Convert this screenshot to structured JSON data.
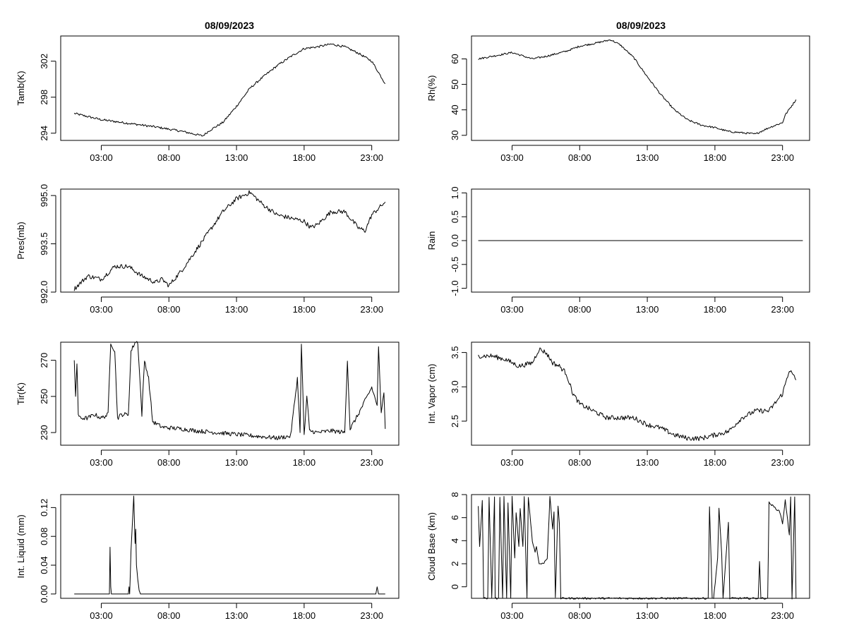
{
  "figure": {
    "left_title": "08/09/2023",
    "right_title": "08/09/2023",
    "line_color": "#000000",
    "background": "#ffffff"
  },
  "chart_data": [
    {
      "id": "tamb",
      "type": "line",
      "ylabel": "Tamb(K)",
      "xlim": [
        0,
        25
      ],
      "ylim": [
        293.2,
        304.8
      ],
      "yticks": [
        294,
        298,
        302
      ],
      "ytick_labels": [
        "294",
        "298",
        "302"
      ],
      "xticks": [
        3,
        8,
        13,
        18,
        23
      ],
      "xtick_labels": [
        "03:00",
        "08:00",
        "13:00",
        "18:00",
        "23:00"
      ],
      "series": [
        {
          "name": "Tamb",
          "x": [
            1,
            3,
            5,
            7,
            9,
            10.5,
            11,
            12,
            13,
            14,
            15,
            16,
            17,
            18,
            19,
            20,
            21,
            22,
            23,
            24
          ],
          "y": [
            296.2,
            295.5,
            295.1,
            294.7,
            294.2,
            293.7,
            294.3,
            295.2,
            297.0,
            299.0,
            300.3,
            301.5,
            302.5,
            303.4,
            303.6,
            303.9,
            303.6,
            302.9,
            302.0,
            299.5
          ],
          "noise": 0.12
        }
      ]
    },
    {
      "id": "rh",
      "type": "line",
      "ylabel": "Rh(%)",
      "xlim": [
        0,
        25
      ],
      "ylim": [
        28,
        69
      ],
      "yticks": [
        30,
        40,
        50,
        60
      ],
      "ytick_labels": [
        "30",
        "40",
        "50",
        "60"
      ],
      "xticks": [
        3,
        8,
        13,
        18,
        23
      ],
      "xtick_labels": [
        "03:00",
        "08:00",
        "13:00",
        "18:00",
        "23:00"
      ],
      "series": [
        {
          "name": "Rh",
          "x": [
            0.5,
            2,
            3,
            4.5,
            5.5,
            7,
            8,
            9,
            10.3,
            11,
            12,
            13,
            14,
            15,
            16,
            17,
            18,
            19,
            20,
            21,
            22,
            23,
            23.2,
            24
          ],
          "y": [
            60,
            61.5,
            62.5,
            60,
            61,
            63,
            65,
            66,
            67.5,
            65.5,
            60.5,
            53,
            46,
            40,
            36,
            34,
            33,
            31.5,
            31,
            30.5,
            33,
            35,
            38,
            44
          ],
          "noise": 0.35
        }
      ]
    },
    {
      "id": "pres",
      "type": "line",
      "ylabel": "Pres(mb)",
      "xlim": [
        0,
        25
      ],
      "ylim": [
        992.0,
        995.2
      ],
      "yticks": [
        992.0,
        993.5,
        995.0
      ],
      "ytick_labels": [
        "992.0",
        "993.5",
        "995.0"
      ],
      "xticks": [
        3,
        8,
        13,
        18,
        23
      ],
      "xtick_labels": [
        "03:00",
        "08:00",
        "13:00",
        "18:00",
        "23:00"
      ],
      "series": [
        {
          "name": "Pres",
          "x": [
            1,
            2,
            3,
            3.5,
            4,
            5,
            6,
            7,
            7.5,
            8,
            9,
            10,
            11,
            12,
            13,
            14,
            15,
            16,
            17,
            18,
            18.5,
            19,
            20,
            21,
            22,
            22.5,
            23,
            24
          ],
          "y": [
            992.1,
            992.5,
            992.4,
            992.6,
            992.8,
            992.8,
            992.5,
            992.3,
            992.4,
            992.2,
            992.7,
            993.3,
            993.9,
            994.5,
            994.9,
            995.1,
            994.7,
            994.4,
            994.3,
            994.2,
            994.0,
            994.1,
            994.5,
            994.5,
            994.0,
            993.9,
            994.4,
            994.8
          ],
          "noise": 0.07
        }
      ]
    },
    {
      "id": "rain",
      "type": "line",
      "ylabel": "Rain",
      "xlim": [
        0,
        25
      ],
      "ylim": [
        -1.08,
        1.08
      ],
      "yticks": [
        -1.0,
        -0.5,
        0.0,
        0.5,
        1.0
      ],
      "ytick_labels": [
        "-1.0",
        "-0.5",
        "0.0",
        "0.5",
        "1.0"
      ],
      "xticks": [
        3,
        8,
        13,
        18,
        23
      ],
      "xtick_labels": [
        "03:00",
        "08:00",
        "13:00",
        "18:00",
        "23:00"
      ],
      "series": [
        {
          "name": "Rain",
          "x": [
            0.5,
            24.5
          ],
          "y": [
            0,
            0
          ],
          "noise": 0
        }
      ]
    },
    {
      "id": "tir",
      "type": "line",
      "ylabel": "Tir(K)",
      "xlim": [
        0,
        25
      ],
      "ylim": [
        223,
        280
      ],
      "yticks": [
        230,
        250,
        270
      ],
      "ytick_labels": [
        "230",
        "250",
        "270"
      ],
      "xticks": [
        3,
        8,
        13,
        18,
        23
      ],
      "xtick_labels": [
        "03:00",
        "08:00",
        "13:00",
        "18:00",
        "23:00"
      ],
      "series": [
        {
          "name": "Tir",
          "x": [
            1,
            1.1,
            1.2,
            1.3,
            1.4,
            2,
            2.5,
            3,
            3.5,
            3.7,
            4,
            4.2,
            4.5,
            5,
            5.2,
            5.5,
            5.7,
            6,
            6.2,
            6.5,
            6.8,
            7.5,
            9,
            10,
            13,
            16,
            17,
            17.5,
            17.7,
            17.8,
            18,
            18.2,
            18.4,
            19,
            20,
            21,
            21.2,
            21.4,
            22,
            23,
            23.4,
            23.5,
            23.7,
            23.9,
            24
          ],
          "y": [
            270,
            250,
            268,
            240,
            238,
            238,
            240,
            238,
            240,
            280,
            275,
            238,
            240,
            240,
            275,
            280,
            280,
            240,
            270,
            260,
            236,
            233,
            232,
            231,
            229,
            227,
            228,
            260,
            230,
            280,
            228,
            250,
            231,
            230,
            231,
            230,
            270,
            232,
            240,
            255,
            245,
            278,
            240,
            252,
            232
          ],
          "noise": 1.2
        }
      ]
    },
    {
      "id": "vapor",
      "type": "line",
      "ylabel": "Int. Vapor (cm)",
      "xlim": [
        0,
        25
      ],
      "ylim": [
        2.15,
        3.65
      ],
      "yticks": [
        2.5,
        3.0,
        3.5
      ],
      "ytick_labels": [
        "2.5",
        "3.0",
        "3.5"
      ],
      "xticks": [
        3,
        8,
        13,
        18,
        23
      ],
      "xtick_labels": [
        "03:00",
        "08:00",
        "13:00",
        "18:00",
        "23:00"
      ],
      "series": [
        {
          "name": "Int. Vapor",
          "x": [
            0.5,
            1.5,
            2.5,
            3.5,
            4.5,
            5,
            5.5,
            6,
            6.5,
            7,
            7.5,
            8,
            9,
            10,
            11,
            12,
            13,
            14,
            15,
            16,
            17,
            18,
            19,
            20,
            21,
            22,
            23,
            23.5,
            24
          ],
          "y": [
            3.45,
            3.45,
            3.4,
            3.3,
            3.35,
            3.55,
            3.5,
            3.35,
            3.3,
            3.2,
            2.9,
            2.75,
            2.65,
            2.55,
            2.55,
            2.55,
            2.45,
            2.4,
            2.3,
            2.25,
            2.25,
            2.3,
            2.35,
            2.55,
            2.65,
            2.65,
            2.9,
            3.25,
            3.1
          ],
          "noise": 0.035
        }
      ]
    },
    {
      "id": "liquid",
      "type": "line",
      "ylabel": "Int. Liquid (mm)",
      "xlim": [
        0,
        25
      ],
      "ylim": [
        -0.006,
        0.138
      ],
      "yticks": [
        0.0,
        0.04,
        0.08,
        0.12
      ],
      "ytick_labels": [
        "0.00",
        "0.04",
        "0.08",
        "0.12"
      ],
      "xticks": [
        3,
        8,
        13,
        18,
        23
      ],
      "xtick_labels": [
        "03:00",
        "08:00",
        "13:00",
        "18:00",
        "23:00"
      ],
      "series": [
        {
          "name": "Int. Liquid",
          "x": [
            1,
            3.6,
            3.65,
            3.7,
            3.75,
            5.0,
            5.05,
            5.1,
            5.2,
            5.4,
            5.5,
            5.55,
            5.6,
            5.7,
            5.8,
            5.9,
            23.3,
            23.4,
            23.5,
            23.6,
            24
          ],
          "y": [
            0,
            0,
            0.065,
            0.01,
            0,
            0,
            0.01,
            0,
            0.06,
            0.136,
            0.07,
            0.09,
            0.04,
            0.02,
            0.005,
            0,
            0,
            0.01,
            0,
            0,
            0
          ],
          "noise": 0
        }
      ]
    },
    {
      "id": "cloudbase",
      "type": "line",
      "ylabel": "Cloud Base (km)",
      "xlim": [
        0,
        25
      ],
      "ylim": [
        -1.0,
        8.0
      ],
      "yticks": [
        0,
        2,
        4,
        6,
        8
      ],
      "ytick_labels": [
        "0",
        "2",
        "4",
        "6",
        "8"
      ],
      "xticks": [
        3,
        8,
        13,
        18,
        23
      ],
      "xtick_labels": [
        "03:00",
        "08:00",
        "13:00",
        "18:00",
        "23:00"
      ],
      "series": [
        {
          "name": "Cloud Base",
          "x": [
            0.5,
            0.6,
            0.8,
            0.9,
            1.2,
            1.3,
            1.5,
            1.7,
            1.75,
            2,
            2.1,
            2.3,
            2.4,
            2.6,
            2.7,
            2.9,
            3.0,
            3.2,
            3.3,
            3.5,
            3.6,
            3.8,
            3.9,
            4.1,
            4.2,
            4.5,
            4.7,
            4.8,
            5.0,
            5.1,
            5.3,
            5.6,
            5.8,
            6.0,
            6.1,
            6.2,
            6.4,
            6.5,
            6.6,
            17.5,
            17.6,
            17.8,
            17.9,
            18.2,
            18.3,
            18.5,
            18.6,
            19,
            19.1,
            19.3,
            21.2,
            21.3,
            21.4,
            21.9,
            22,
            22.5,
            22.8,
            23.0,
            23.2,
            23.5,
            23.6,
            23.7,
            23.9,
            24
          ],
          "y": [
            7,
            3.5,
            7.5,
            -1,
            -1,
            7.8,
            -1,
            7.8,
            -1,
            -1,
            7.8,
            -1,
            7.8,
            -1,
            7.2,
            -1,
            7.8,
            2.5,
            6.5,
            3.5,
            6.8,
            3.5,
            7.8,
            -1,
            7.8,
            4.0,
            3.0,
            3.5,
            2.0,
            2.0,
            2.0,
            2.5,
            7.8,
            5.0,
            6.5,
            -1,
            7.0,
            5.5,
            -1,
            -1,
            7.0,
            -1,
            -1,
            2.5,
            6.8,
            2.8,
            -1,
            5.6,
            -1,
            -1,
            -1,
            2.2,
            -1,
            -1,
            7.3,
            6.8,
            6.5,
            5.5,
            7.5,
            4.5,
            7.8,
            -1,
            7.8,
            -1
          ],
          "noise": 0.08
        }
      ]
    }
  ]
}
